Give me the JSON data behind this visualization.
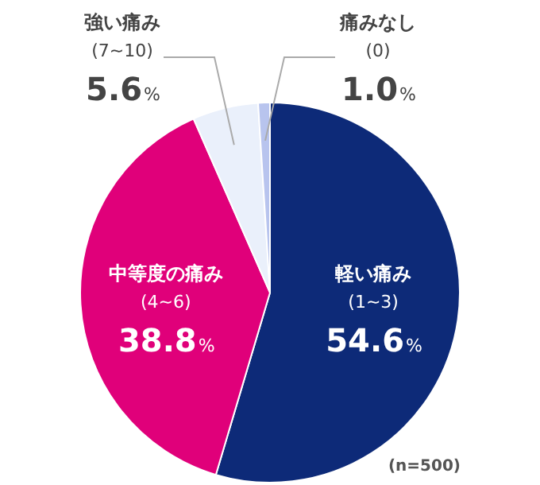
{
  "chart_data": {
    "type": "pie",
    "categories": [
      "軽い痛み\n(1~3)",
      "中等度の痛み\n(4~6)",
      "強い痛み\n(7~10)",
      "痛みなし\n(0)"
    ],
    "values": [
      54.6,
      38.8,
      5.6,
      1.0
    ],
    "colors": [
      "#0d2a78",
      "#e0007a",
      "#eaf0fb",
      "#b8c4ee"
    ],
    "value_labels": [
      "54.6%",
      "38.8%",
      "5.6%",
      "1.0%"
    ],
    "annotations": [
      "(n=500)"
    ],
    "legend": false
  }
}
